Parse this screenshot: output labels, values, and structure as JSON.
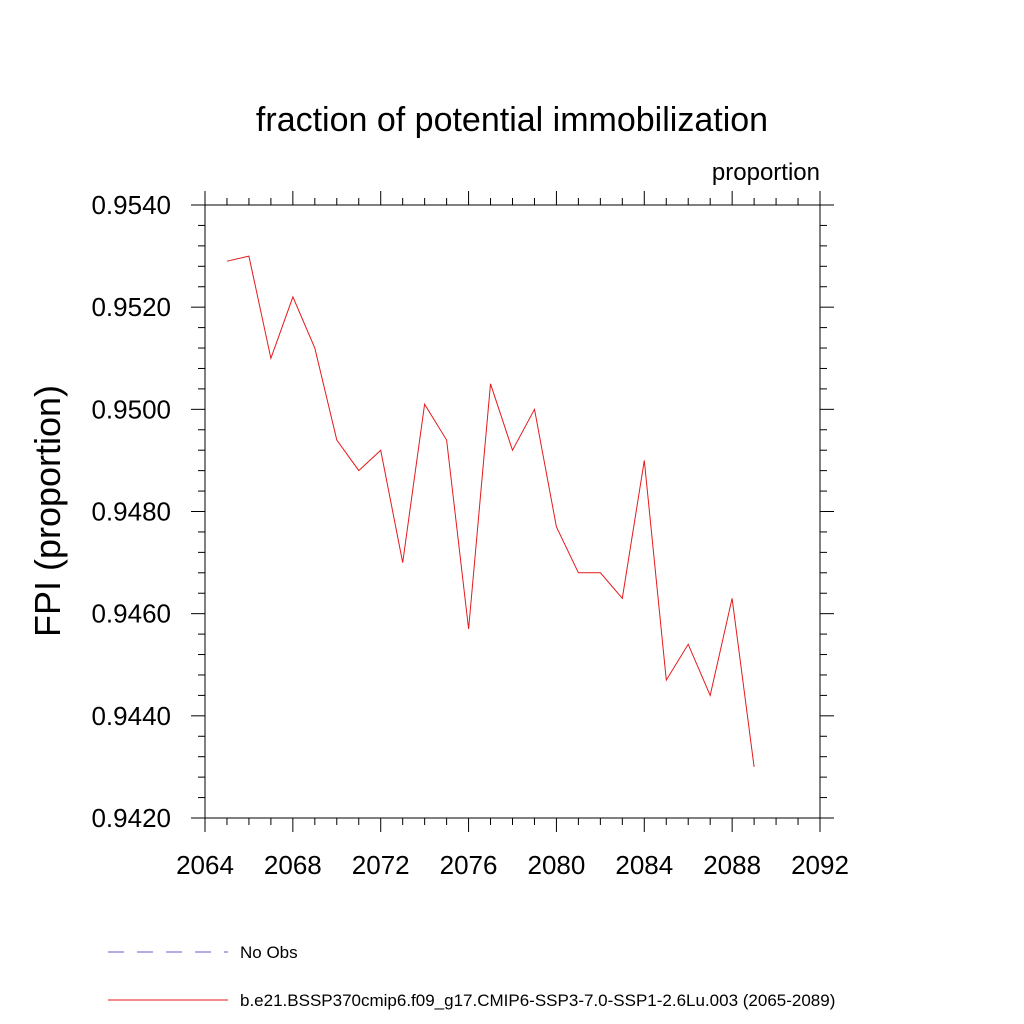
{
  "chart_data": {
    "type": "line",
    "title": "fraction of potential immobilization",
    "units_label": "proportion",
    "xlabel": "",
    "ylabel": "FPI  (proportion)",
    "xlim": [
      2064,
      2092
    ],
    "ylim": [
      0.942,
      0.954
    ],
    "x_ticks": [
      2064,
      2068,
      2072,
      2076,
      2080,
      2084,
      2088,
      2092
    ],
    "x_tick_labels": [
      "2064",
      "2068",
      "2072",
      "2076",
      "2080",
      "2084",
      "2088",
      "2092"
    ],
    "y_ticks": [
      0.942,
      0.944,
      0.946,
      0.948,
      0.95,
      0.952,
      0.954
    ],
    "y_tick_labels": [
      "0.9420",
      "0.9440",
      "0.9460",
      "0.9480",
      "0.9500",
      "0.9520",
      "0.9540"
    ],
    "grid": false,
    "legend_position": "bottom",
    "legend": [
      {
        "label": "No Obs",
        "color": "#6a5acd",
        "style": "dashed"
      },
      {
        "label": "b.e21.BSSP370cmip6.f09_g17.CMIP6-SSP3-7.0-SSP1-2.6Lu.003 (2065-2089)",
        "color": "#e41a1c",
        "style": "solid"
      }
    ],
    "series": [
      {
        "color": "#e41a1c",
        "x": [
          2065,
          2066,
          2067,
          2068,
          2069,
          2070,
          2071,
          2072,
          2073,
          2074,
          2075,
          2076,
          2077,
          2078,
          2079,
          2080,
          2081,
          2082,
          2083,
          2084,
          2085,
          2086,
          2087,
          2088,
          2089
        ],
        "y": [
          0.9529,
          0.953,
          0.951,
          0.9522,
          0.9512,
          0.9494,
          0.9488,
          0.9492,
          0.947,
          0.9501,
          0.9494,
          0.9457,
          0.9505,
          0.9492,
          0.95,
          0.9477,
          0.9468,
          0.9468,
          0.9463,
          0.949,
          0.9447,
          0.9454,
          0.9444,
          0.9463,
          0.943
        ]
      }
    ]
  }
}
